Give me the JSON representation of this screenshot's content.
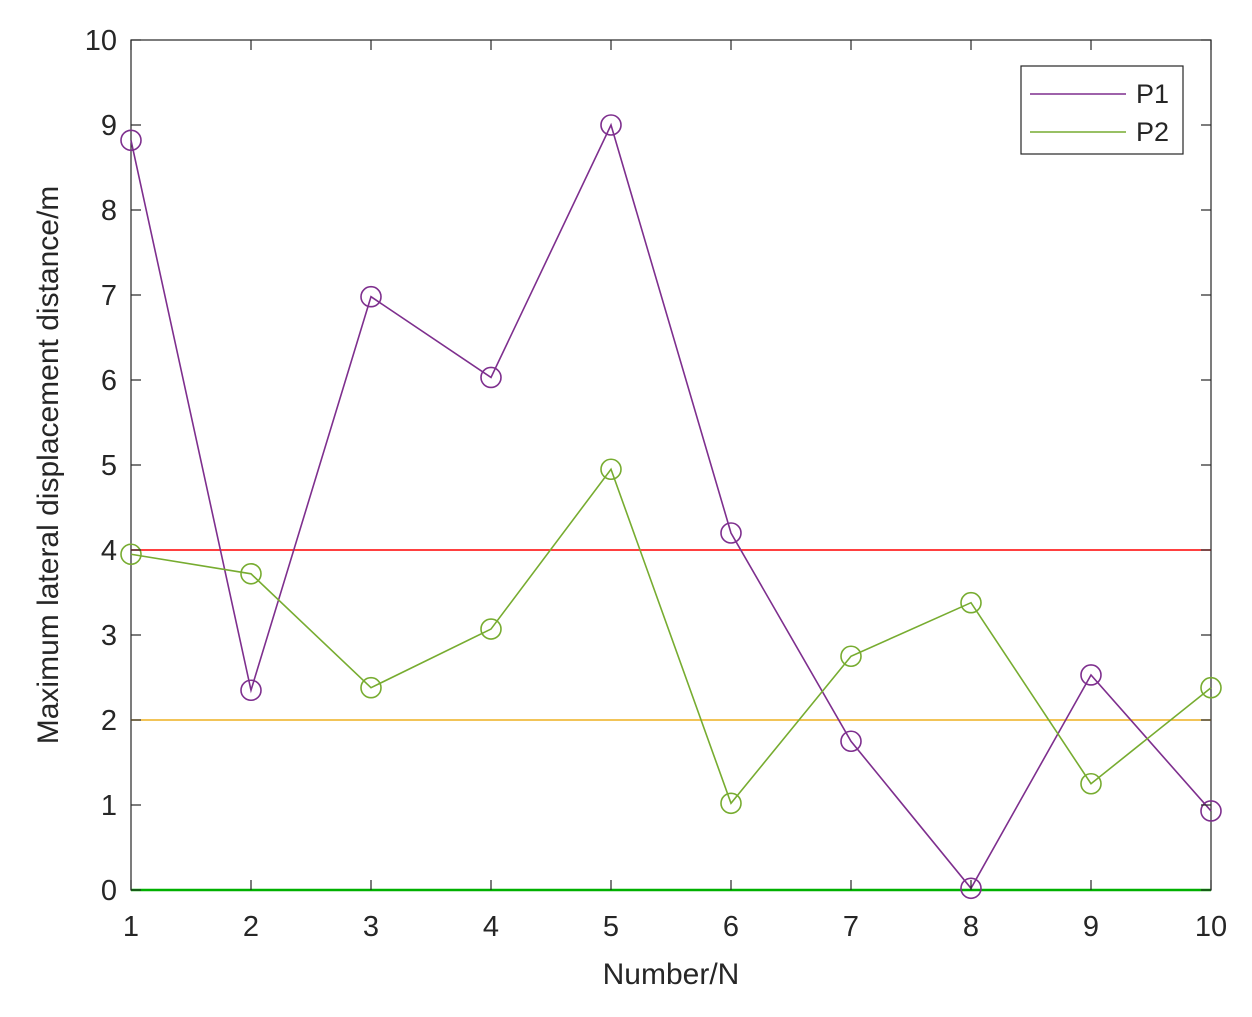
{
  "chart_data": {
    "type": "line",
    "title": "",
    "xlabel": "Number/N",
    "ylabel": "Maximum lateral displacement distance/m",
    "x": [
      1,
      2,
      3,
      4,
      5,
      6,
      7,
      8,
      9,
      10
    ],
    "xlim": [
      1,
      10
    ],
    "ylim": [
      0,
      10
    ],
    "xticks": [
      "1",
      "2",
      "3",
      "4",
      "5",
      "6",
      "7",
      "8",
      "9",
      "10"
    ],
    "yticks": [
      "0",
      "1",
      "2",
      "3",
      "4",
      "5",
      "6",
      "7",
      "8",
      "9",
      "10"
    ],
    "grid": false,
    "legend_position": "top-right",
    "series": [
      {
        "name": "P1",
        "color": "#7e2f8e",
        "marker": "circle",
        "values": [
          8.82,
          2.35,
          6.98,
          6.03,
          9.0,
          4.2,
          1.75,
          0.02,
          2.53,
          0.93
        ]
      },
      {
        "name": "P2",
        "color": "#77ac30",
        "marker": "circle",
        "values": [
          3.95,
          3.72,
          2.38,
          3.07,
          4.95,
          1.02,
          2.75,
          3.38,
          1.25,
          2.38
        ]
      }
    ],
    "reference_lines": [
      {
        "y": 4,
        "color": "#ff0000"
      },
      {
        "y": 2,
        "color": "#edb120"
      },
      {
        "y": 0,
        "color": "#00b000"
      }
    ]
  }
}
